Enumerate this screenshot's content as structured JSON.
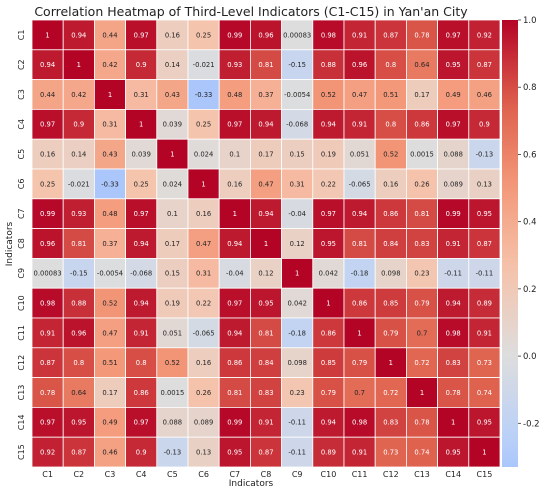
{
  "chart_data": {
    "type": "heatmap",
    "title": "Correlation Heatmap of Third-Level Indicators (C1-C15) in Yan'an City",
    "xlabel": "Indicators",
    "ylabel": "Indicators",
    "labels": [
      "C1",
      "C2",
      "C3",
      "C4",
      "C5",
      "C6",
      "C7",
      "C8",
      "C9",
      "C10",
      "C11",
      "C12",
      "C13",
      "C14",
      "C15"
    ],
    "values": [
      [
        1,
        0.94,
        0.44,
        0.97,
        0.16,
        0.25,
        0.99,
        0.96,
        0.00083,
        0.98,
        0.91,
        0.87,
        0.78,
        0.97,
        0.92
      ],
      [
        0.94,
        1,
        0.42,
        0.9,
        0.14,
        -0.021,
        0.93,
        0.81,
        -0.15,
        0.88,
        0.96,
        0.8,
        0.64,
        0.95,
        0.87
      ],
      [
        0.44,
        0.42,
        1,
        0.31,
        0.43,
        -0.33,
        0.48,
        0.37,
        -0.0054,
        0.52,
        0.47,
        0.51,
        0.17,
        0.49,
        0.46
      ],
      [
        0.97,
        0.9,
        0.31,
        1,
        0.039,
        0.25,
        0.97,
        0.94,
        -0.068,
        0.94,
        0.91,
        0.8,
        0.86,
        0.97,
        0.9
      ],
      [
        0.16,
        0.14,
        0.43,
        0.039,
        1,
        0.024,
        0.1,
        0.17,
        0.15,
        0.19,
        0.051,
        0.52,
        0.0015,
        0.088,
        -0.13
      ],
      [
        0.25,
        -0.021,
        -0.33,
        0.25,
        0.024,
        1,
        0.16,
        0.47,
        0.31,
        0.22,
        -0.065,
        0.16,
        0.26,
        0.089,
        0.13
      ],
      [
        0.99,
        0.93,
        0.48,
        0.97,
        0.1,
        0.16,
        1,
        0.94,
        -0.04,
        0.97,
        0.94,
        0.86,
        0.81,
        0.99,
        0.95
      ],
      [
        0.96,
        0.81,
        0.37,
        0.94,
        0.17,
        0.47,
        0.94,
        1,
        0.12,
        0.95,
        0.81,
        0.84,
        0.83,
        0.91,
        0.87
      ],
      [
        0.00083,
        -0.15,
        -0.0054,
        -0.068,
        0.15,
        0.31,
        -0.04,
        0.12,
        1,
        0.042,
        -0.18,
        0.098,
        0.23,
        -0.11,
        -0.11
      ],
      [
        0.98,
        0.88,
        0.52,
        0.94,
        0.19,
        0.22,
        0.97,
        0.95,
        0.042,
        1,
        0.86,
        0.85,
        0.79,
        0.94,
        0.89
      ],
      [
        0.91,
        0.96,
        0.47,
        0.91,
        0.051,
        -0.065,
        0.94,
        0.81,
        -0.18,
        0.86,
        1,
        0.79,
        0.7,
        0.98,
        0.91
      ],
      [
        0.87,
        0.8,
        0.51,
        0.8,
        0.52,
        0.16,
        0.86,
        0.84,
        0.098,
        0.85,
        0.79,
        1,
        0.72,
        0.83,
        0.73
      ],
      [
        0.78,
        0.64,
        0.17,
        0.86,
        0.0015,
        0.26,
        0.81,
        0.83,
        0.23,
        0.79,
        0.7,
        0.72,
        1,
        0.78,
        0.74
      ],
      [
        0.97,
        0.95,
        0.49,
        0.97,
        0.088,
        0.089,
        0.99,
        0.91,
        -0.11,
        0.94,
        0.98,
        0.83,
        0.78,
        1,
        0.95
      ],
      [
        0.92,
        0.87,
        0.46,
        0.9,
        -0.13,
        0.13,
        0.95,
        0.87,
        -0.11,
        0.89,
        0.91,
        0.73,
        0.74,
        0.95,
        1
      ]
    ],
    "value_labels": [
      [
        "1",
        "0.94",
        "0.44",
        "0.97",
        "0.16",
        "0.25",
        "0.99",
        "0.96",
        "0.00083",
        "0.98",
        "0.91",
        "0.87",
        "0.78",
        "0.97",
        "0.92"
      ],
      [
        "0.94",
        "1",
        "0.42",
        "0.9",
        "0.14",
        "-0.021",
        "0.93",
        "0.81",
        "-0.15",
        "0.88",
        "0.96",
        "0.8",
        "0.64",
        "0.95",
        "0.87"
      ],
      [
        "0.44",
        "0.42",
        "1",
        "0.31",
        "0.43",
        "-0.33",
        "0.48",
        "0.37",
        "-0.0054",
        "0.52",
        "0.47",
        "0.51",
        "0.17",
        "0.49",
        "0.46"
      ],
      [
        "0.97",
        "0.9",
        "0.31",
        "1",
        "0.039",
        "0.25",
        "0.97",
        "0.94",
        "-0.068",
        "0.94",
        "0.91",
        "0.8",
        "0.86",
        "0.97",
        "0.9"
      ],
      [
        "0.16",
        "0.14",
        "0.43",
        "0.039",
        "1",
        "0.024",
        "0.1",
        "0.17",
        "0.15",
        "0.19",
        "0.051",
        "0.52",
        "0.0015",
        "0.088",
        "-0.13"
      ],
      [
        "0.25",
        "-0.021",
        "-0.33",
        "0.25",
        "0.024",
        "1",
        "0.16",
        "0.47",
        "0.31",
        "0.22",
        "-0.065",
        "0.16",
        "0.26",
        "0.089",
        "0.13"
      ],
      [
        "0.99",
        "0.93",
        "0.48",
        "0.97",
        "0.1",
        "0.16",
        "1",
        "0.94",
        "-0.04",
        "0.97",
        "0.94",
        "0.86",
        "0.81",
        "0.99",
        "0.95"
      ],
      [
        "0.96",
        "0.81",
        "0.37",
        "0.94",
        "0.17",
        "0.47",
        "0.94",
        "1",
        "0.12",
        "0.95",
        "0.81",
        "0.84",
        "0.83",
        "0.91",
        "0.87"
      ],
      [
        "0.00083",
        "-0.15",
        "-0.0054",
        "-0.068",
        "0.15",
        "0.31",
        "-0.04",
        "0.12",
        "1",
        "0.042",
        "-0.18",
        "0.098",
        "0.23",
        "-0.11",
        "-0.11"
      ],
      [
        "0.98",
        "0.88",
        "0.52",
        "0.94",
        "0.19",
        "0.22",
        "0.97",
        "0.95",
        "0.042",
        "1",
        "0.86",
        "0.85",
        "0.79",
        "0.94",
        "0.89"
      ],
      [
        "0.91",
        "0.96",
        "0.47",
        "0.91",
        "0.051",
        "-0.065",
        "0.94",
        "0.81",
        "-0.18",
        "0.86",
        "1",
        "0.79",
        "0.7",
        "0.98",
        "0.91"
      ],
      [
        "0.87",
        "0.8",
        "0.51",
        "0.8",
        "0.52",
        "0.16",
        "0.86",
        "0.84",
        "0.098",
        "0.85",
        "0.79",
        "1",
        "0.72",
        "0.83",
        "0.73"
      ],
      [
        "0.78",
        "0.64",
        "0.17",
        "0.86",
        "0.0015",
        "0.26",
        "0.81",
        "0.83",
        "0.23",
        "0.79",
        "0.7",
        "0.72",
        "1",
        "0.78",
        "0.74"
      ],
      [
        "0.97",
        "0.95",
        "0.49",
        "0.97",
        "0.088",
        "0.089",
        "0.99",
        "0.91",
        "-0.11",
        "0.94",
        "0.98",
        "0.83",
        "0.78",
        "1",
        "0.95"
      ],
      [
        "0.92",
        "0.87",
        "0.46",
        "0.9",
        "-0.13",
        "0.13",
        "0.95",
        "0.87",
        "-0.11",
        "0.89",
        "0.91",
        "0.73",
        "0.74",
        "0.95",
        "1"
      ]
    ],
    "colorbar": {
      "range": [
        -0.33,
        1.0
      ],
      "ticks": [
        -0.2,
        0.0,
        0.2,
        0.4,
        0.6,
        0.8,
        1.0
      ],
      "tick_labels": [
        "-0.2",
        "0.0",
        "0.2",
        "0.4",
        "0.6",
        "0.8",
        "1.0"
      ],
      "colormap": "coolwarm",
      "center": 0
    },
    "grid": false,
    "cell_border_color": "#ffffff"
  }
}
